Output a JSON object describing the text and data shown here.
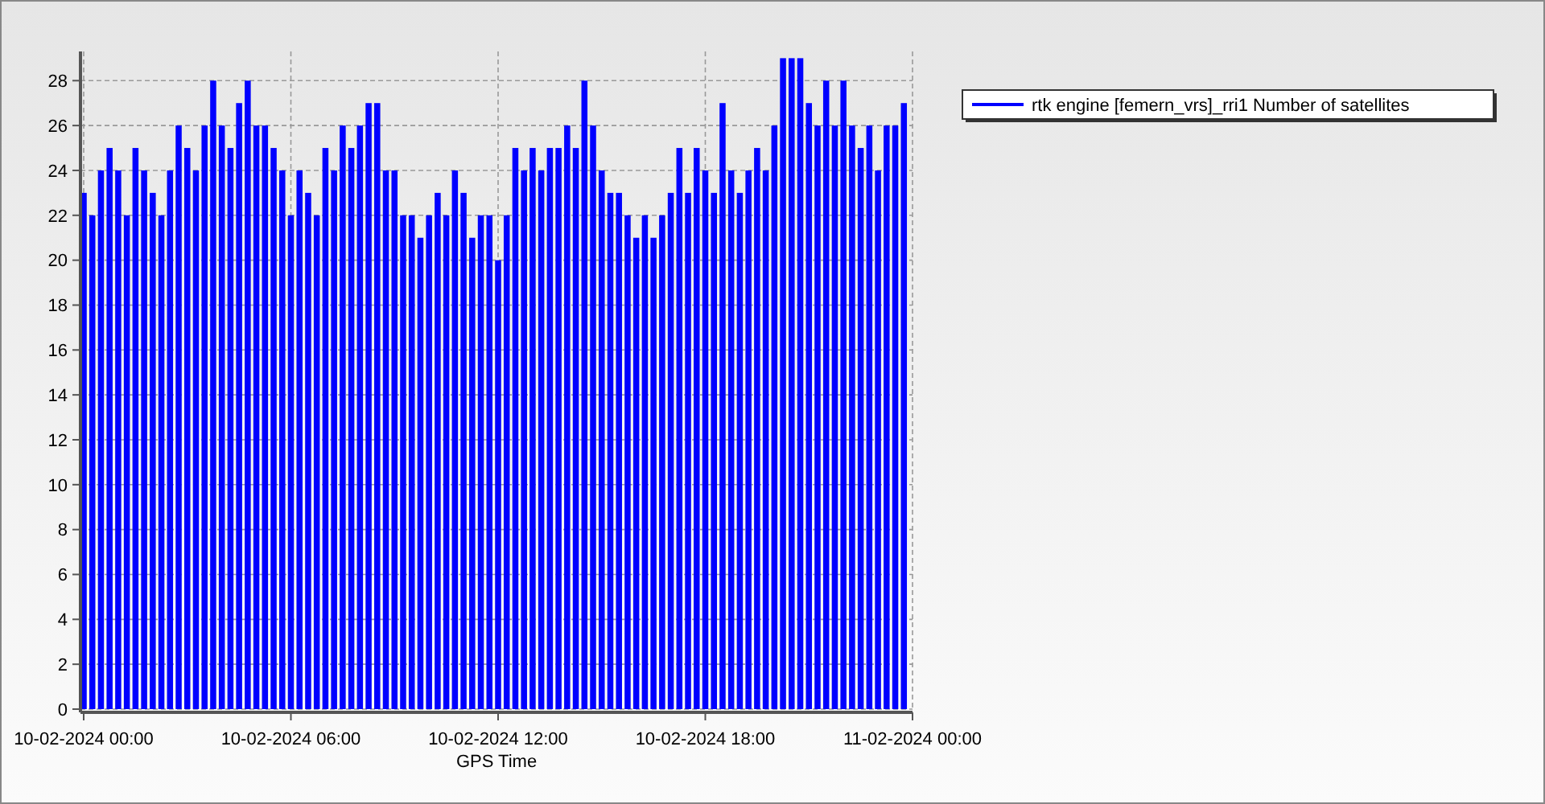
{
  "chart_data": {
    "type": "bar",
    "xlabel": "GPS Time",
    "legend": "right",
    "grid": true,
    "xlim": [
      "2024-02-10T00:00",
      "2024-02-11T00:00"
    ],
    "xticks": [
      {
        "value": "2024-02-10T00:00",
        "label": "10-02-2024 00:00"
      },
      {
        "value": "2024-02-10T06:00",
        "label": "10-02-2024 06:00"
      },
      {
        "value": "2024-02-10T12:00",
        "label": "10-02-2024 12:00"
      },
      {
        "value": "2024-02-10T18:00",
        "label": "10-02-2024 18:00"
      },
      {
        "value": "2024-02-11T00:00",
        "label": "11-02-2024 00:00"
      }
    ],
    "ylim": [
      0,
      29.3
    ],
    "yticks": [
      0,
      2,
      4,
      6,
      8,
      10,
      12,
      14,
      16,
      18,
      20,
      22,
      24,
      26,
      28
    ],
    "x": [
      "2024-02-10T00:00",
      "2024-02-10T00:15",
      "2024-02-10T00:30",
      "2024-02-10T00:45",
      "2024-02-10T01:00",
      "2024-02-10T01:15",
      "2024-02-10T01:30",
      "2024-02-10T01:45",
      "2024-02-10T02:00",
      "2024-02-10T02:15",
      "2024-02-10T02:30",
      "2024-02-10T02:45",
      "2024-02-10T03:00",
      "2024-02-10T03:15",
      "2024-02-10T03:30",
      "2024-02-10T03:45",
      "2024-02-10T04:00",
      "2024-02-10T04:15",
      "2024-02-10T04:30",
      "2024-02-10T04:45",
      "2024-02-10T05:00",
      "2024-02-10T05:15",
      "2024-02-10T05:30",
      "2024-02-10T05:45",
      "2024-02-10T06:00",
      "2024-02-10T06:15",
      "2024-02-10T06:30",
      "2024-02-10T06:45",
      "2024-02-10T07:00",
      "2024-02-10T07:15",
      "2024-02-10T07:30",
      "2024-02-10T07:45",
      "2024-02-10T08:00",
      "2024-02-10T08:15",
      "2024-02-10T08:30",
      "2024-02-10T08:45",
      "2024-02-10T09:00",
      "2024-02-10T09:15",
      "2024-02-10T09:30",
      "2024-02-10T09:45",
      "2024-02-10T10:00",
      "2024-02-10T10:15",
      "2024-02-10T10:30",
      "2024-02-10T10:45",
      "2024-02-10T11:00",
      "2024-02-10T11:15",
      "2024-02-10T11:30",
      "2024-02-10T11:45",
      "2024-02-10T12:00",
      "2024-02-10T12:15",
      "2024-02-10T12:30",
      "2024-02-10T12:45",
      "2024-02-10T13:00",
      "2024-02-10T13:15",
      "2024-02-10T13:30",
      "2024-02-10T13:45",
      "2024-02-10T14:00",
      "2024-02-10T14:15",
      "2024-02-10T14:30",
      "2024-02-10T14:45",
      "2024-02-10T15:00",
      "2024-02-10T15:15",
      "2024-02-10T15:30",
      "2024-02-10T15:45",
      "2024-02-10T16:00",
      "2024-02-10T16:15",
      "2024-02-10T16:30",
      "2024-02-10T16:45",
      "2024-02-10T17:00",
      "2024-02-10T17:15",
      "2024-02-10T17:30",
      "2024-02-10T17:45",
      "2024-02-10T18:00",
      "2024-02-10T18:15",
      "2024-02-10T18:30",
      "2024-02-10T18:45",
      "2024-02-10T19:00",
      "2024-02-10T19:15",
      "2024-02-10T19:30",
      "2024-02-10T19:45",
      "2024-02-10T20:00",
      "2024-02-10T20:15",
      "2024-02-10T20:30",
      "2024-02-10T20:45",
      "2024-02-10T21:00",
      "2024-02-10T21:15",
      "2024-02-10T21:30",
      "2024-02-10T21:45",
      "2024-02-10T22:00",
      "2024-02-10T22:15",
      "2024-02-10T22:30",
      "2024-02-10T22:45",
      "2024-02-10T23:00",
      "2024-02-10T23:15",
      "2024-02-10T23:30",
      "2024-02-10T23:45"
    ],
    "series": [
      {
        "name": "rtk engine [femern_vrs]_rri1 Number of satellites",
        "color": "#0000ff",
        "values": [
          23,
          22,
          24,
          25,
          24,
          22,
          25,
          24,
          23,
          22,
          24,
          26,
          25,
          24,
          26,
          28,
          26,
          25,
          27,
          28,
          26,
          26,
          25,
          24,
          22,
          24,
          23,
          22,
          25,
          24,
          26,
          25,
          26,
          27,
          27,
          24,
          24,
          22,
          22,
          21,
          22,
          23,
          22,
          24,
          23,
          21,
          22,
          22,
          20,
          22,
          25,
          24,
          25,
          24,
          25,
          25,
          26,
          25,
          28,
          26,
          24,
          23,
          23,
          22,
          21,
          22,
          21,
          22,
          23,
          25,
          23,
          25,
          24,
          23,
          27,
          24,
          23,
          24,
          25,
          24,
          26,
          29,
          29,
          29,
          27,
          26,
          28,
          26,
          28,
          26,
          25,
          26,
          24,
          26,
          26,
          27
        ]
      }
    ]
  }
}
